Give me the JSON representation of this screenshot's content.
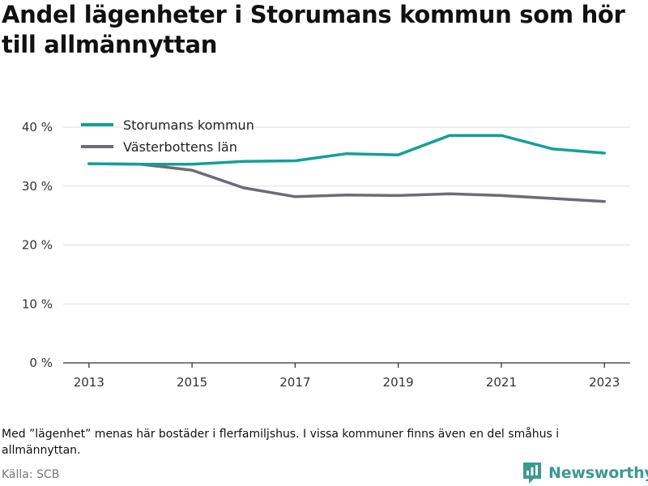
{
  "header": {
    "title": "Andel lägenheter i Storumans kommun som hör till allmännyttan"
  },
  "footer": {
    "note": "Med ”lägenhet” menas här bostäder i flerfamiljshus. I vissa kommuner finns även en del småhus i allmännyttan.",
    "source": "Källa: SCB",
    "brand_name": "Newsworthy",
    "brand_color": "#3a9a90",
    "brand_icon": "newsworthy-logo-icon"
  },
  "chart_data": {
    "type": "line",
    "title": "Andel lägenheter i Storumans kommun som hör till allmännyttan",
    "xlabel": "",
    "ylabel": "",
    "x": [
      2013,
      2014,
      2015,
      2016,
      2017,
      2018,
      2019,
      2020,
      2021,
      2022,
      2023
    ],
    "x_ticks": [
      2013,
      2015,
      2017,
      2019,
      2021,
      2023
    ],
    "x_tick_labels": [
      "2013",
      "2015",
      "2017",
      "2019",
      "2021",
      "2023"
    ],
    "ylim": [
      0,
      40
    ],
    "y_ticks": [
      0,
      10,
      20,
      30,
      40
    ],
    "y_tick_labels": [
      "0 %",
      "10 %",
      "20 %",
      "30 %",
      "40 %"
    ],
    "grid": true,
    "legend_position": "top-left",
    "series": [
      {
        "name": "Storumans kommun",
        "color": "#13a097",
        "values": [
          33.8,
          33.7,
          33.7,
          34.2,
          34.3,
          35.5,
          35.3,
          38.6,
          38.6,
          36.3,
          35.6
        ]
      },
      {
        "name": "Västerbottens län",
        "color": "#6e6b74",
        "values": [
          33.8,
          33.7,
          32.7,
          29.7,
          28.2,
          28.5,
          28.4,
          28.7,
          28.4,
          27.9,
          27.4
        ]
      }
    ]
  }
}
